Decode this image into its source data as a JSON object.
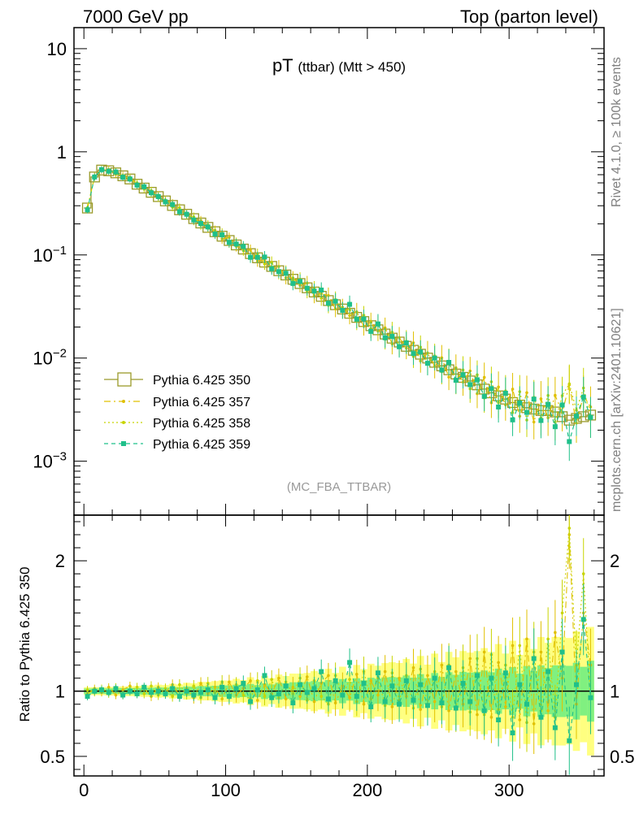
{
  "header": {
    "left": "7000 GeV pp",
    "right": "Top (parton level)"
  },
  "side_labels": {
    "rivet": "Rivet 4.1.0, ≥ 100k events",
    "mcplots": "mcplots.cern.ch [arXiv:2401.10621]"
  },
  "chart_data": {
    "type": "line",
    "title": "pT",
    "title_sub": "(ttbar) (Mtt > 450)",
    "analysis_tag": "(MC_FBA_TTBAR)",
    "xlim": [
      -7,
      367
    ],
    "x_ticks": [
      "0",
      "100",
      "200",
      "300"
    ],
    "main_panel": {
      "yscale": "log",
      "ylim": [
        0.0003,
        16
      ],
      "y_ticks": [
        {
          "value": 10,
          "base": "10",
          "exp": ""
        },
        {
          "value": 1,
          "base": "1",
          "exp": ""
        },
        {
          "value": 0.1,
          "base": "10",
          "exp": "−1"
        },
        {
          "value": 0.01,
          "base": "10",
          "exp": "−2"
        },
        {
          "value": 0.001,
          "base": "10",
          "exp": "−3"
        }
      ]
    },
    "ratio_panel": {
      "ylabel": "Ratio to Pythia 6.425 350",
      "ylim": [
        0.35,
        2.35
      ],
      "y_ticks": [
        "0.5",
        "1",
        "2"
      ],
      "reference_line": 1
    },
    "bin_width": 5,
    "x_centers": [
      2.5,
      7.5,
      12.5,
      17.5,
      22.5,
      27.5,
      32.5,
      37.5,
      42.5,
      47.5,
      52.5,
      57.5,
      62.5,
      67.5,
      72.5,
      77.5,
      82.5,
      87.5,
      92.5,
      97.5,
      102.5,
      107.5,
      112.5,
      117.5,
      122.5,
      127.5,
      132.5,
      137.5,
      142.5,
      147.5,
      152.5,
      157.5,
      162.5,
      167.5,
      172.5,
      177.5,
      182.5,
      187.5,
      192.5,
      197.5,
      202.5,
      207.5,
      212.5,
      217.5,
      222.5,
      227.5,
      232.5,
      237.5,
      242.5,
      247.5,
      252.5,
      257.5,
      262.5,
      267.5,
      272.5,
      277.5,
      282.5,
      287.5,
      292.5,
      297.5,
      302.5,
      307.5,
      312.5,
      317.5,
      322.5,
      327.5,
      332.5,
      337.5,
      342.5,
      347.5,
      352.5,
      357.5
    ],
    "series": [
      {
        "name": "Pythia 6.425 350",
        "color": "#9a9a2a",
        "style": "open-square",
        "values": [
          0.285,
          0.57,
          0.665,
          0.655,
          0.625,
          0.585,
          0.545,
          0.485,
          0.445,
          0.405,
          0.368,
          0.334,
          0.302,
          0.274,
          0.248,
          0.225,
          0.204,
          0.185,
          0.168,
          0.152,
          0.138,
          0.125,
          0.114,
          0.103,
          0.0938,
          0.0852,
          0.0774,
          0.0703,
          0.0639,
          0.0581,
          0.0528,
          0.048,
          0.0437,
          0.0397,
          0.0361,
          0.0329,
          0.0299,
          0.0272,
          0.0248,
          0.0226,
          0.0206,
          0.0188,
          0.0171,
          0.0156,
          0.0143,
          0.013,
          0.0119,
          0.0109,
          0.01,
          0.0091,
          0.0084,
          0.0077,
          0.007,
          0.0065,
          0.006,
          0.0055,
          0.005,
          0.0046,
          0.0043,
          0.004,
          0.0037,
          0.0035,
          0.0033,
          0.0032,
          0.0031,
          0.0031,
          0.003,
          0.0027,
          0.0025,
          0.0026,
          0.0027,
          0.0028
        ],
        "ratio": [
          1,
          1,
          1,
          1,
          1,
          1,
          1,
          1,
          1,
          1,
          1,
          1,
          1,
          1,
          1,
          1,
          1,
          1,
          1,
          1,
          1,
          1,
          1,
          1,
          1,
          1,
          1,
          1,
          1,
          1,
          1,
          1,
          1,
          1,
          1,
          1,
          1,
          1,
          1,
          1,
          1,
          1,
          1,
          1,
          1,
          1,
          1,
          1,
          1,
          1,
          1,
          1,
          1,
          1,
          1,
          1,
          1,
          1,
          1,
          1,
          1,
          1,
          1,
          1,
          1,
          1,
          1,
          1,
          1,
          1,
          1,
          1
        ]
      },
      {
        "name": "Pythia 6.425 357",
        "color": "#e0c000",
        "style": "dash-dot-star",
        "ratio": [
          0.98,
          1.02,
          0.99,
          1.03,
          0.97,
          1.01,
          1.04,
          0.98,
          1.02,
          0.96,
          1.03,
          0.99,
          1.05,
          0.97,
          1.02,
          0.95,
          1.06,
          0.98,
          1.03,
          0.94,
          1.07,
          0.97,
          1.02,
          1.08,
          0.93,
          1.05,
          0.98,
          1.1,
          0.94,
          1.03,
          0.96,
          1.11,
          0.92,
          1.06,
          1.12,
          0.91,
          1.04,
          0.95,
          1.13,
          0.9,
          1.08,
          0.97,
          1.15,
          0.88,
          1.1,
          0.96,
          1.18,
          0.86,
          1.12,
          0.92,
          1.2,
          0.85,
          1.15,
          0.9,
          1.25,
          0.82,
          1.3,
          0.8,
          1.22,
          0.88,
          1.35,
          0.78,
          1.4,
          0.75,
          1.3,
          0.85,
          1.45,
          1.1,
          2.2,
          0.9,
          1.6,
          1.2
        ]
      },
      {
        "name": "Pythia 6.425 358",
        "color": "#c8d400",
        "style": "dotted-star",
        "ratio": [
          1.01,
          0.99,
          1.02,
          0.98,
          1.03,
          0.97,
          1.01,
          1.03,
          0.98,
          1.04,
          0.97,
          1.02,
          0.96,
          1.05,
          0.98,
          1.04,
          0.95,
          1.06,
          0.99,
          1.07,
          0.95,
          1.05,
          0.97,
          0.94,
          1.08,
          0.96,
          1.09,
          0.95,
          1.07,
          0.98,
          1.1,
          0.93,
          1.08,
          0.96,
          0.9,
          1.12,
          0.97,
          1.09,
          0.92,
          1.15,
          0.94,
          1.1,
          0.89,
          1.14,
          0.93,
          1.12,
          0.87,
          1.17,
          0.9,
          1.15,
          0.88,
          1.2,
          0.86,
          1.18,
          0.84,
          1.25,
          0.82,
          1.28,
          0.86,
          1.2,
          0.8,
          1.35,
          0.76,
          1.3,
          0.85,
          1.4,
          0.8,
          1.6,
          2.25,
          1.2,
          1.9,
          0.95
        ]
      },
      {
        "name": "Pythia 6.425 359",
        "color": "#1fc08a",
        "style": "dashed-square",
        "ratio": [
          0.96,
          1.0,
          1.01,
          0.99,
          1.02,
          0.97,
          1.0,
          0.98,
          1.03,
          0.99,
          1.0,
          0.98,
          1.02,
          0.96,
          1.0,
          0.97,
          0.99,
          1.01,
          0.95,
          1.03,
          0.96,
          1.02,
          1.06,
          0.92,
          1.01,
          1.12,
          0.95,
          0.98,
          1.04,
          0.91,
          1.05,
          0.99,
          1.02,
          1.15,
          0.94,
          1.08,
          0.97,
          1.22,
          0.96,
          1.06,
          0.88,
          1.14,
          0.92,
          1.04,
          0.9,
          1.08,
          0.93,
          1.05,
          0.89,
          1.1,
          0.91,
          1.18,
          0.87,
          1.06,
          0.92,
          1.12,
          0.85,
          1.1,
          0.78,
          1.14,
          0.68,
          1.05,
          0.9,
          1.25,
          0.8,
          1.15,
          0.72,
          1.3,
          0.62,
          1.05,
          1.55,
          0.95
        ]
      }
    ],
    "uncertainty_bands": [
      {
        "name": "Pythia 6.425 357/358 band",
        "color": "#ffff80",
        "halfwidth_start": 0.03,
        "halfwidth_end": 0.42
      },
      {
        "name": "Pythia 6.425 359 band",
        "color": "#80f080",
        "halfwidth_start": 0.02,
        "halfwidth_end": 0.2
      }
    ]
  }
}
